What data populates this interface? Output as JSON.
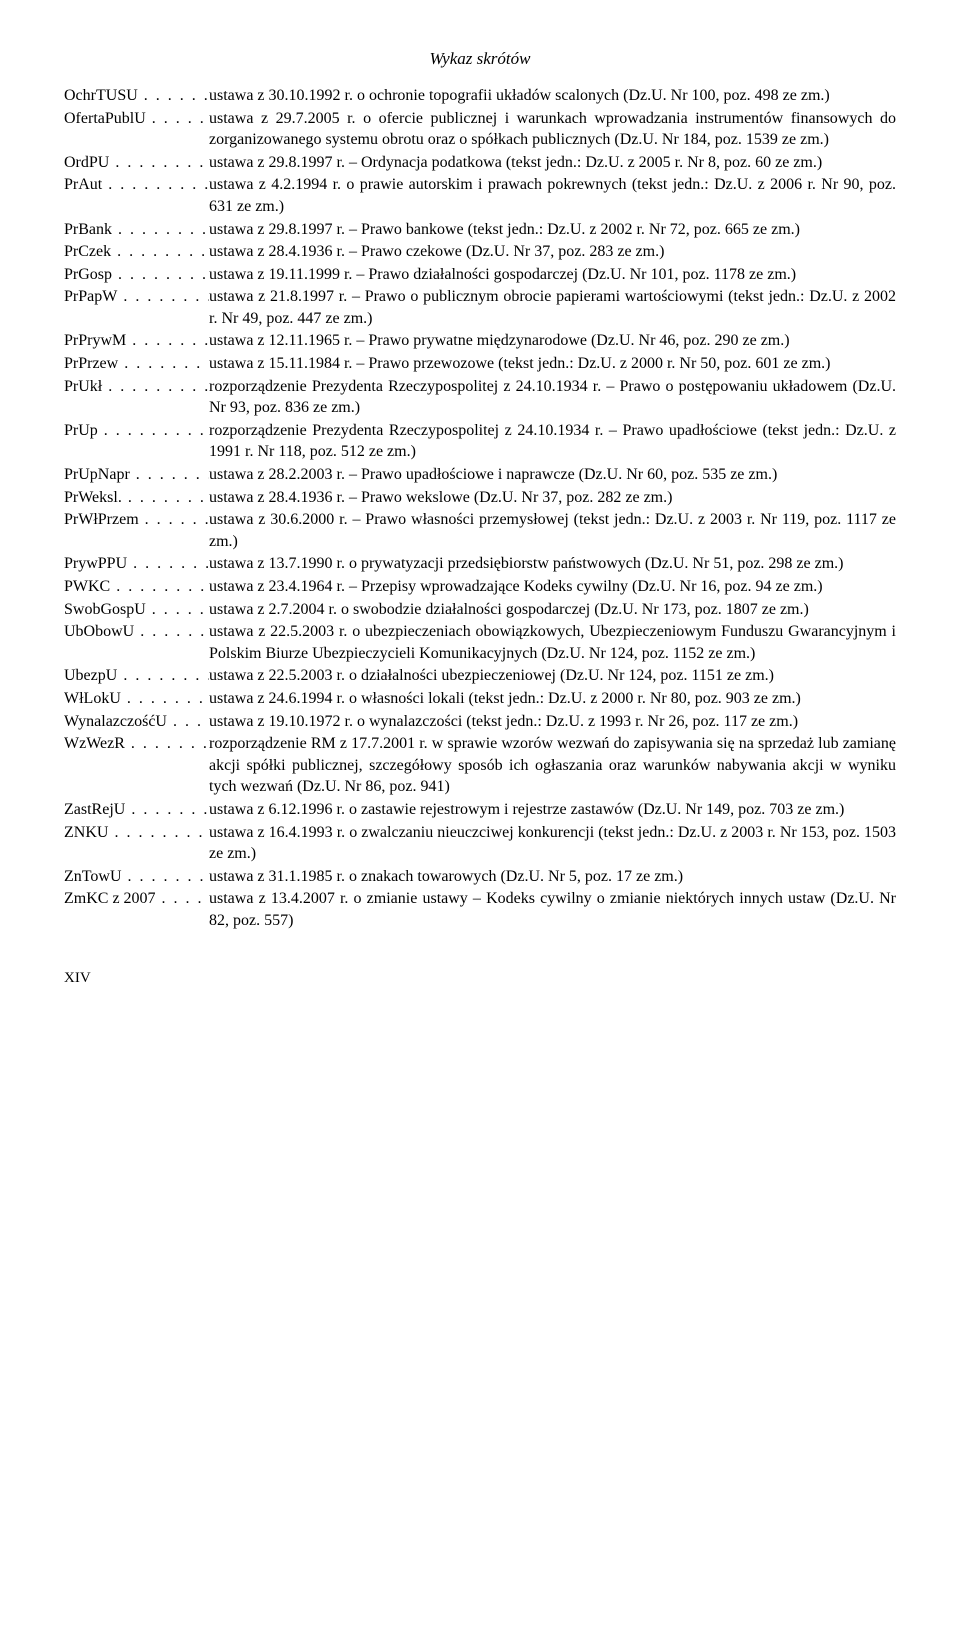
{
  "header": "Wykaz skrótów",
  "page_number": "XIV",
  "entries": [
    {
      "abbr": "OchrTUSU",
      "desc": "ustawa z 30.10.1992 r. o ochronie topografii układów scalonych (Dz.U. Nr 100, poz. 498 ze zm.)"
    },
    {
      "abbr": "OfertaPublU",
      "desc": "ustawa z 29.7.2005 r. o ofercie publicznej i warunkach wprowadzania instrumentów finansowych do zorganizowanego systemu obrotu oraz o spółkach publicznych (Dz.U. Nr 184, poz. 1539 ze zm.)"
    },
    {
      "abbr": "OrdPU",
      "desc": "ustawa z 29.8.1997 r. – Ordynacja podatkowa (tekst jedn.: Dz.U. z 2005 r. Nr 8, poz. 60 ze zm.)"
    },
    {
      "abbr": "PrAut",
      "desc": "ustawa z 4.2.1994 r. o prawie autorskim i prawach pokrewnych (tekst jedn.: Dz.U. z 2006 r. Nr 90, poz. 631 ze zm.)"
    },
    {
      "abbr": "PrBank",
      "desc": "ustawa z 29.8.1997 r. – Prawo bankowe  (tekst jedn.: Dz.U. z 2002 r. Nr 72, poz. 665 ze zm.)"
    },
    {
      "abbr": "PrCzek",
      "desc": "ustawa z 28.4.1936 r. – Prawo czekowe (Dz.U. Nr 37, poz. 283 ze zm.)"
    },
    {
      "abbr": "PrGosp",
      "desc": "ustawa z 19.11.1999 r. – Prawo działalności gospodarczej (Dz.U. Nr 101, poz. 1178 ze zm.)"
    },
    {
      "abbr": "PrPapW",
      "desc": "ustawa z 21.8.1997 r. – Prawo o publicznym obrocie papierami wartościowymi (tekst jedn.: Dz.U. z 2002 r. Nr 49, poz. 447 ze zm.)"
    },
    {
      "abbr": "PrPrywM",
      "desc": "ustawa z 12.11.1965 r. – Prawo prywatne międzynarodowe (Dz.U. Nr 46, poz. 290 ze zm.)"
    },
    {
      "abbr": "PrPrzew",
      "desc": "ustawa z 15.11.1984 r. – Prawo przewozowe (tekst jedn.: Dz.U. z 2000 r. Nr 50, poz. 601 ze zm.)"
    },
    {
      "abbr": "PrUkł",
      "desc": "rozporządzenie Prezydenta Rzeczypospolitej z 24.10.1934 r. – Prawo o postępowaniu układowem (Dz.U. Nr 93, poz. 836 ze zm.)"
    },
    {
      "abbr": "PrUp",
      "desc": "rozporządzenie Prezydenta Rzeczypospolitej z 24.10.1934 r. – Prawo upadłościowe (tekst jedn.: Dz.U. z 1991 r. Nr 118, poz. 512 ze zm.)"
    },
    {
      "abbr": "PrUpNapr",
      "desc": "ustawa z 28.2.2003 r. – Prawo upadłościowe i naprawcze (Dz.U. Nr 60, poz. 535 ze zm.)"
    },
    {
      "abbr": "PrWeksl.",
      "desc": "ustawa z 28.4.1936 r. – Prawo wekslowe (Dz.U. Nr 37, poz. 282 ze zm.)"
    },
    {
      "abbr": "PrWłPrzem",
      "desc": "ustawa z 30.6.2000 r. – Prawo własności przemysłowej (tekst jedn.: Dz.U. z 2003 r. Nr 119, poz. 1117 ze zm.)"
    },
    {
      "abbr": "PrywPPU",
      "desc": "ustawa z 13.7.1990 r. o prywatyzacji przedsiębiorstw państwowych (Dz.U. Nr 51, poz. 298 ze zm.)"
    },
    {
      "abbr": "PWKC",
      "desc": "ustawa z 23.4.1964 r. – Przepisy wprowadzające Kodeks cywilny (Dz.U. Nr 16, poz. 94 ze zm.)"
    },
    {
      "abbr": "SwobGospU",
      "desc": "ustawa z 2.7.2004 r. o swobodzie działalności gospodarczej (Dz.U. Nr 173, poz. 1807 ze zm.)"
    },
    {
      "abbr": "UbObowU",
      "desc": "ustawa z 22.5.2003 r. o ubezpieczeniach obowiązkowych, Ubezpieczeniowym Funduszu Gwarancyjnym i Polskim Biurze Ubezpieczycieli Komunikacyjnych (Dz.U. Nr 124, poz. 1152 ze zm.)"
    },
    {
      "abbr": "UbezpU",
      "desc": "ustawa z 22.5.2003 r. o działalności ubezpieczeniowej (Dz.U. Nr 124, poz. 1151 ze zm.)"
    },
    {
      "abbr": "WłLokU",
      "desc": "ustawa z 24.6.1994 r. o własności lokali (tekst jedn.: Dz.U. z 2000 r. Nr 80, poz. 903 ze zm.)"
    },
    {
      "abbr": "WynalazczośćU",
      "desc": "ustawa z 19.10.1972 r. o wynalazczości (tekst jedn.: Dz.U. z 1993 r. Nr 26, poz. 117 ze zm.)"
    },
    {
      "abbr": "WzWezR",
      "desc": "rozporządzenie RM z 17.7.2001 r. w sprawie wzorów wezwań do zapisywania się na sprzedaż lub zamianę akcji spółki publicznej, szczegółowy sposób ich ogłaszania oraz warunków nabywania akcji w wyniku tych wezwań (Dz.U. Nr 86, poz. 941)"
    },
    {
      "abbr": "ZastRejU",
      "desc": "ustawa z 6.12.1996 r. o zastawie rejestrowym i rejestrze zastawów (Dz.U. Nr 149, poz. 703 ze zm.)"
    },
    {
      "abbr": "ZNKU",
      "desc": "ustawa z 16.4.1993 r. o zwalczaniu nieuczciwej konkurencji (tekst jedn.: Dz.U. z 2003 r. Nr 153, poz. 1503 ze zm.)"
    },
    {
      "abbr": "ZnTowU",
      "desc": "ustawa z 31.1.1985 r. o znakach towarowych (Dz.U. Nr 5, poz. 17 ze zm.)"
    },
    {
      "abbr": "ZmKC z 2007",
      "desc": "ustawa z 13.4.2007 r. o zmianie ustawy – Kodeks cywilny o zmianie niektórych innych ustaw (Dz.U. Nr 82, poz. 557)"
    }
  ]
}
